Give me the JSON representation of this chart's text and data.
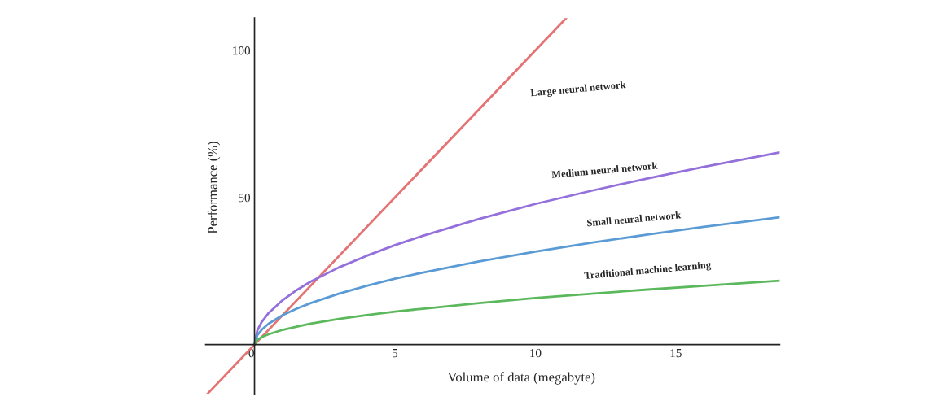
{
  "chart_data": {
    "type": "line",
    "xlabel": "Volume of data (megabyte)",
    "ylabel": "Performance (%)",
    "xlim": [
      -1.74,
      18.7
    ],
    "ylim": [
      -17,
      111
    ],
    "xticks": [
      0,
      5,
      10,
      15
    ],
    "yticks": [
      50,
      100
    ],
    "grid": false,
    "legend": false,
    "marker": "none",
    "line_style": "solid",
    "series": [
      {
        "name": "Large neural network",
        "color": "#e57373",
        "x": [
          -1.7,
          11.1
        ],
        "values": [
          -17,
          111
        ]
      },
      {
        "name": "Medium neural network",
        "color": "#9370db",
        "x": [
          0,
          0.1,
          0.25,
          0.5,
          1,
          1.5,
          2,
          3,
          4,
          5,
          6,
          8,
          10,
          12,
          14,
          16,
          18.7
        ],
        "values": [
          0,
          4.8,
          7.6,
          10.7,
          15.1,
          18.5,
          21.4,
          26.2,
          30.2,
          33.8,
          37.0,
          42.7,
          47.8,
          52.3,
          56.5,
          60.4,
          65.3
        ]
      },
      {
        "name": "Small neural network",
        "color": "#5b9bd5",
        "x": [
          0,
          0.1,
          0.25,
          0.5,
          1,
          1.5,
          2,
          3,
          4,
          5,
          6,
          8,
          10,
          12,
          14,
          16,
          18.7
        ],
        "values": [
          0,
          3.2,
          5,
          7.1,
          10,
          12.2,
          14.1,
          17.3,
          20,
          22.4,
          24.5,
          28.3,
          31.6,
          34.6,
          37.4,
          40,
          43.3
        ]
      },
      {
        "name": "Traditional machine learning",
        "color": "#5cb85c",
        "x": [
          0,
          0.1,
          0.25,
          0.5,
          1,
          1.5,
          2,
          3,
          4,
          5,
          6,
          8,
          10,
          12,
          14,
          16,
          18.7
        ],
        "values": [
          0,
          1.6,
          2.5,
          3.5,
          5,
          6.1,
          7.1,
          8.7,
          10,
          11.2,
          12.2,
          14.1,
          15.8,
          17.3,
          18.7,
          20,
          21.7
        ]
      }
    ]
  }
}
